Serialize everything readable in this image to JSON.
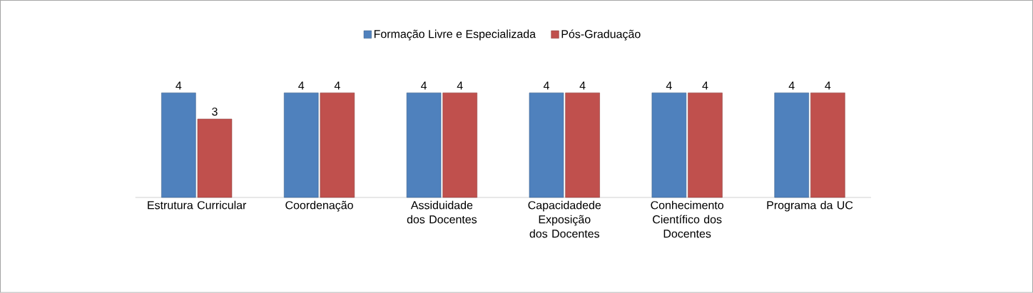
{
  "chart_data": {
    "type": "bar",
    "categories": [
      "Estrutura Curricular",
      "Coordenação",
      "Assiduidade dos Docentes",
      "Capacidadede Exposição dos Docentes",
      "Conhecimento Científico dos Docentes",
      "Programa da UC"
    ],
    "series": [
      {
        "name": "Formação Livre e Especializada",
        "color": "#4f81bd",
        "values": [
          4,
          4,
          4,
          4,
          4,
          4
        ]
      },
      {
        "name": "Pós-Graduação",
        "color": "#c0504d",
        "values": [
          3,
          4,
          4,
          4,
          4,
          4
        ]
      }
    ],
    "data_labels": true,
    "legend": "top"
  }
}
